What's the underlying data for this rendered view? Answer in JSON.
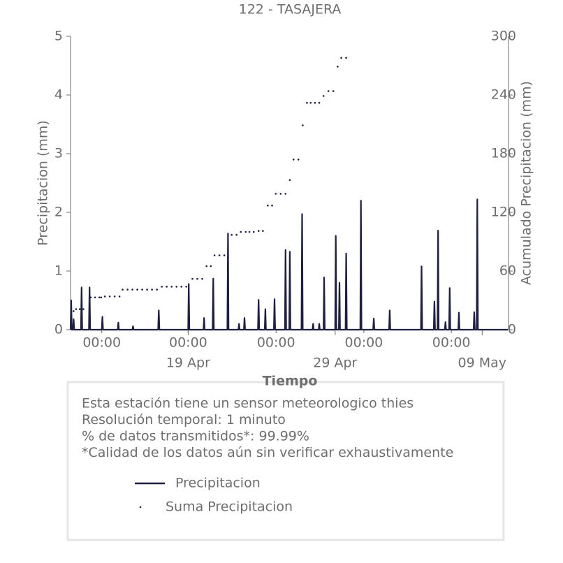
{
  "chart_data": {
    "type": "line",
    "title": "122 - TASAJERA",
    "xlabel": "Tiempo",
    "ylabel": "Precipitacion (mm)",
    "y2label": "Acumulado Precipitacion (mm)",
    "xlim": [
      "04-11 00:00",
      "05-10 19:00"
    ],
    "xticks": [
      {
        "value": "04-13 03:00",
        "label": "00:00"
      },
      {
        "value": "04-19 00:00",
        "label": "00:00"
      },
      {
        "value": "04-24 23:30",
        "label": "00:00"
      },
      {
        "value": "04-30 22:50",
        "label": "00:00"
      },
      {
        "value": "05-06 21:40",
        "label": "00:00"
      }
    ],
    "xticks2": [
      {
        "value": "04-19 00:00",
        "label": "19 Apr"
      },
      {
        "value": "04-29 00:00",
        "label": "29 Apr"
      },
      {
        "value": "05-09 00:00",
        "label": "09 May"
      }
    ],
    "ylim": [
      0,
      5
    ],
    "yticks": [
      0,
      1,
      2,
      3,
      4,
      5
    ],
    "y2lim": [
      0,
      300
    ],
    "y2ticks": [
      0,
      60,
      120,
      180,
      240,
      300
    ],
    "notes": [
      "Esta estación tiene un sensor meteorologico thies",
      "Resolución temporal: 1 minuto",
      "% de datos transmitidos*: 99.99%",
      "*Calidad de los datos aún sin verificar exhaustivamente"
    ],
    "series": [
      {
        "name": "Precipitacion",
        "color": "#1f2041",
        "marker": "line",
        "x": [
          "04-11 00:00",
          "04-11 01:00",
          "04-11 02:00",
          "04-11 04:00",
          "04-11 05:00",
          "04-11 06:00",
          "04-11 17:00",
          "04-11 18:00",
          "04-11 19:00",
          "04-12 06:00",
          "04-12 07:00",
          "04-12 08:00",
          "04-13 03:00",
          "04-13 04:00",
          "04-13 05:00",
          "04-14 05:00",
          "04-14 06:00",
          "04-14 07:00",
          "04-15 05:00",
          "04-15 06:00",
          "04-15 07:00",
          "04-16 23:00",
          "04-17 00:00",
          "04-17 01:00",
          "04-19 00:00",
          "04-19 01:00",
          "04-19 02:00",
          "04-20 01:00",
          "04-20 02:00",
          "04-20 03:00",
          "04-20 16:00",
          "04-20 17:00",
          "04-20 18:00",
          "04-21 16:00",
          "04-21 17:00",
          "04-21 18:00",
          "04-22 10:00",
          "04-22 11:00",
          "04-22 12:00",
          "04-22 19:00",
          "04-22 20:00",
          "04-22 21:00",
          "04-23 18:00",
          "04-23 19:00",
          "04-23 20:00",
          "04-24 05:00",
          "04-24 06:00",
          "04-24 07:00",
          "04-24 20:00",
          "04-24 21:00",
          "04-24 22:00",
          "04-25 14:00",
          "04-25 15:00",
          "04-25 16:00",
          "04-25 21:00",
          "04-25 22:00",
          "04-25 23:00",
          "04-26 17:00",
          "04-26 18:00",
          "04-26 19:00",
          "04-27 11:00",
          "04-27 12:00",
          "04-27 13:00",
          "04-27 21:00",
          "04-27 22:00",
          "04-27 23:00",
          "04-28 05:00",
          "04-28 06:00",
          "04-28 07:00",
          "04-29 00:00",
          "04-29 01:00",
          "04-29 02:00",
          "04-29 06:00",
          "04-29 07:00",
          "04-29 08:00",
          "04-29 17:00",
          "04-29 18:00",
          "04-29 19:00",
          "04-30 17:00",
          "04-30 18:00",
          "04-30 19:00",
          "05-01 14:00",
          "05-01 15:00",
          "05-01 16:00",
          "05-02 16:00",
          "05-02 17:00",
          "05-02 18:00",
          "05-04 20:00",
          "05-04 21:00",
          "05-04 22:00",
          "05-05 17:00",
          "05-05 18:00",
          "05-05 19:00",
          "05-05 23:00",
          "05-06 00:00",
          "05-06 01:00",
          "05-06 11:00",
          "05-06 12:00",
          "05-06 13:00",
          "05-06 18:00",
          "05-06 19:00",
          "05-06 20:00",
          "05-07 09:00",
          "05-07 10:00",
          "05-07 11:00",
          "05-08 10:00",
          "05-08 11:00",
          "05-08 12:00",
          "05-08 15:00",
          "05-08 16:00",
          "05-08 17:00",
          "05-10 18:00"
        ],
        "values": [
          0,
          0.5,
          0,
          0,
          0.18,
          0,
          0,
          0.72,
          0,
          0,
          0.72,
          0,
          0,
          0.22,
          0,
          0,
          0.12,
          0,
          0,
          0.06,
          0,
          0,
          0.33,
          0,
          0,
          0.78,
          0,
          0,
          0.2,
          0,
          0,
          0.87,
          0,
          0,
          1.64,
          0,
          0,
          0.1,
          0,
          0,
          0.2,
          0,
          0,
          0.51,
          0,
          0,
          0.35,
          0,
          0,
          0.52,
          0,
          0,
          1.36,
          0,
          0,
          1.33,
          0,
          0,
          1.97,
          0,
          0,
          0.1,
          0,
          0,
          0.1,
          0,
          0,
          0.89,
          0,
          0,
          1.6,
          0,
          0,
          0.8,
          0,
          0,
          1.3,
          0,
          0,
          2.2,
          0,
          0,
          0.19,
          0,
          0,
          0.33,
          0,
          0,
          1.08,
          0,
          0,
          0.48,
          0,
          0,
          1.69,
          0,
          0,
          0.13,
          0,
          0,
          0.71,
          0,
          0,
          0.29,
          0,
          0,
          0.3,
          0,
          0,
          2.22,
          0,
          0
        ]
      },
      {
        "name": "Suma Precipitacion",
        "color": "#1f2041",
        "marker": "dot",
        "axis": "y2",
        "x": [
          "04-11 05:00",
          "04-11 09:00",
          "04-11 15:00",
          "04-11 21:00",
          "04-12 09:00",
          "04-12 16:00",
          "04-12 23:00",
          "04-13 02:00",
          "04-13 08:00",
          "04-13 16:00",
          "04-14 00:00",
          "04-14 08:00",
          "04-14 13:00",
          "04-14 21:00",
          "04-15 05:00",
          "04-15 13:00",
          "04-15 21:00",
          "04-16 05:00",
          "04-16 13:00",
          "04-16 21:00",
          "04-17 05:00",
          "04-17 13:00",
          "04-17 21:00",
          "04-18 05:00",
          "04-18 13:00",
          "04-18 21:00",
          "04-19 07:00",
          "04-19 15:00",
          "04-19 23:00",
          "04-20 06:00",
          "04-20 13:00",
          "04-20 19:00",
          "04-21 03:00",
          "04-21 11:00",
          "04-21 23:00",
          "04-22 07:00",
          "04-22 14:00",
          "04-22 22:00",
          "04-23 04:00",
          "04-23 11:00",
          "04-23 19:00",
          "04-24 02:00",
          "04-24 10:00",
          "04-24 17:00",
          "04-24 23:00",
          "04-25 07:00",
          "04-25 15:00",
          "04-25 22:00",
          "04-26 04:00",
          "04-26 12:00",
          "04-26 19:00",
          "04-27 02:00",
          "04-27 08:00",
          "04-27 15:00",
          "04-27 22:00",
          "04-28 05:00",
          "04-28 13:00",
          "04-28 21:00",
          "04-29 04:00",
          "04-29 10:00",
          "04-29 18:00"
        ],
        "values": [
          19,
          21,
          21,
          21,
          33,
          33,
          33,
          33,
          34,
          34,
          34,
          34,
          41,
          41,
          41,
          41,
          41,
          41,
          41,
          41,
          44,
          44,
          44,
          44,
          44,
          44,
          52,
          52,
          52,
          65,
          65,
          76,
          76,
          76,
          97,
          97,
          100,
          100,
          100,
          100,
          101,
          101,
          127,
          127,
          139,
          139,
          139,
          153,
          174,
          174,
          209,
          232,
          232,
          232,
          232,
          239,
          244,
          244,
          269,
          278,
          278
        ]
      }
    ]
  }
}
